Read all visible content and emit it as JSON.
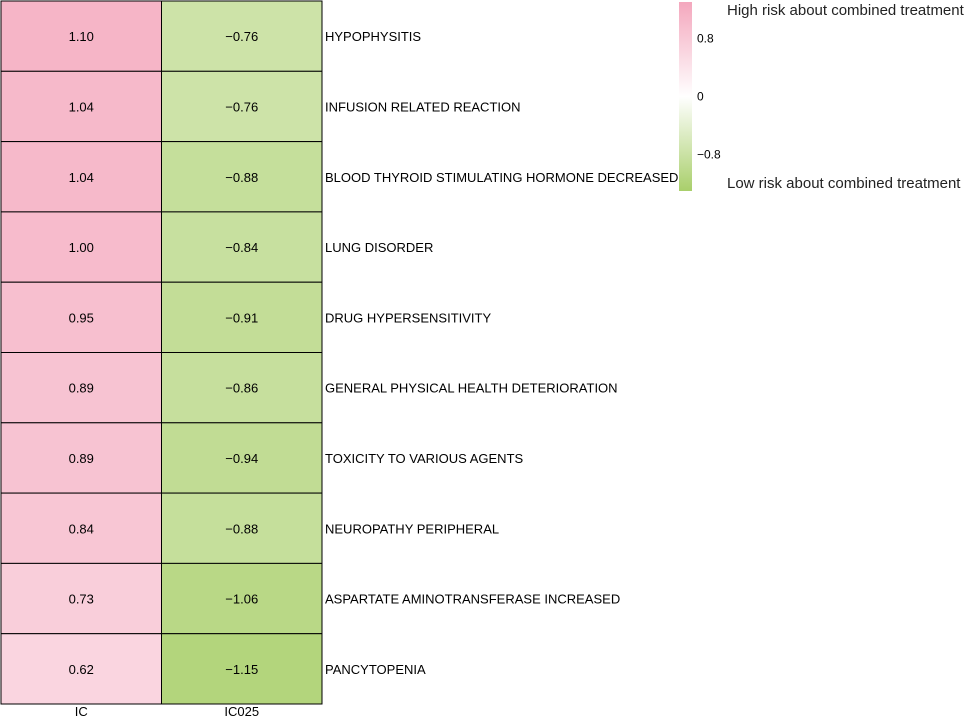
{
  "chart_data": {
    "type": "heatmap",
    "columns": [
      "IC",
      "IC025"
    ],
    "rows": [
      {
        "label": "HYPOPHYSITIS",
        "IC": 1.1,
        "IC025": -0.76,
        "IC_text": "1.10",
        "IC025_text": "−0.76"
      },
      {
        "label": "INFUSION RELATED REACTION",
        "IC": 1.04,
        "IC025": -0.76,
        "IC_text": "1.04",
        "IC025_text": "−0.76"
      },
      {
        "label": "BLOOD THYROID STIMULATING HORMONE DECREASED",
        "IC": 1.04,
        "IC025": -0.88,
        "IC_text": "1.04",
        "IC025_text": "−0.88"
      },
      {
        "label": "LUNG DISORDER",
        "IC": 1.0,
        "IC025": -0.84,
        "IC_text": "1.00",
        "IC025_text": "−0.84"
      },
      {
        "label": "DRUG HYPERSENSITIVITY",
        "IC": 0.95,
        "IC025": -0.91,
        "IC_text": "0.95",
        "IC025_text": "−0.91"
      },
      {
        "label": "GENERAL PHYSICAL HEALTH DETERIORATION",
        "IC": 0.89,
        "IC025": -0.86,
        "IC_text": "0.89",
        "IC025_text": "−0.86"
      },
      {
        "label": "TOXICITY TO VARIOUS AGENTS",
        "IC": 0.89,
        "IC025": -0.94,
        "IC_text": "0.89",
        "IC025_text": "−0.94"
      },
      {
        "label": "NEUROPATHY PERIPHERAL",
        "IC": 0.84,
        "IC025": -0.88,
        "IC_text": "0.84",
        "IC025_text": "−0.88"
      },
      {
        "label": "ASPARTATE AMINOTRANSFERASE INCREASED",
        "IC": 0.73,
        "IC025": -1.06,
        "IC_text": "0.73",
        "IC025_text": "−1.06"
      },
      {
        "label": "PANCYTOPENIA",
        "IC": 0.62,
        "IC025": -1.15,
        "IC_text": "0.62",
        "IC025_text": "−1.15"
      }
    ],
    "color_scale": {
      "low_color": "#a9cf6b",
      "mid_color": "#ffffff",
      "high_color": "#f4a7bd",
      "range": [
        -1.3,
        1.3
      ]
    },
    "legend": {
      "ticks": [
        {
          "value": 0.8,
          "label": "0.8"
        },
        {
          "value": 0,
          "label": "0"
        },
        {
          "value": -0.8,
          "label": "−0.8"
        }
      ],
      "range": [
        -1.3,
        1.3
      ],
      "high_label": "High risk about combined treatment",
      "low_label": "Low risk about combined treatment",
      "placement": "top-right"
    }
  }
}
